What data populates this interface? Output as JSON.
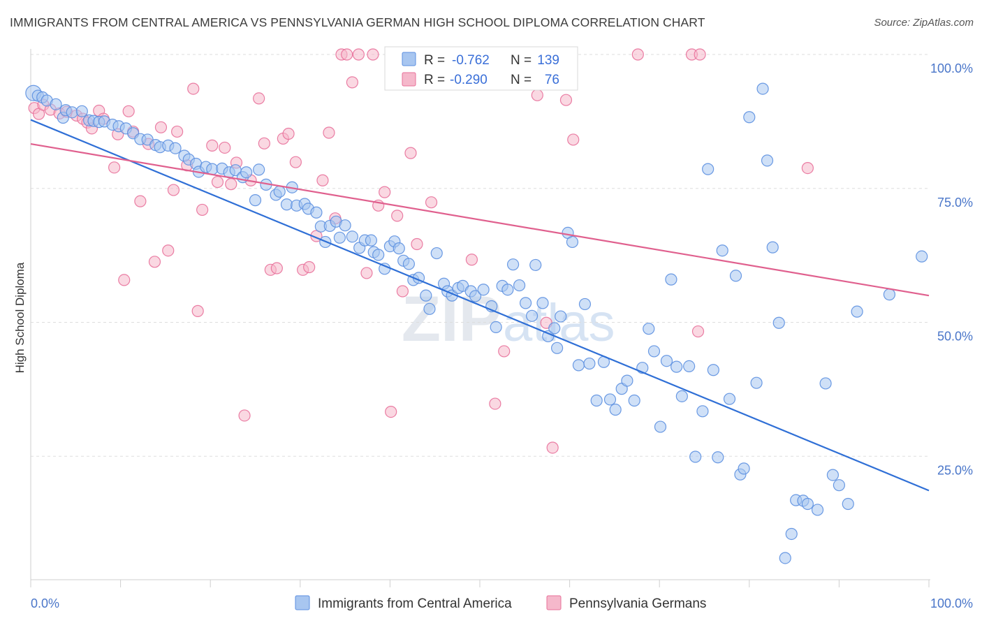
{
  "header": {
    "title": "IMMIGRANTS FROM CENTRAL AMERICA VS PENNSYLVANIA GERMAN HIGH SCHOOL DIPLOMA CORRELATION CHART",
    "source": "Source: ZipAtlas.com"
  },
  "watermark": {
    "zip": "ZIP",
    "atlas": "atlas"
  },
  "legend_box": {
    "rows": [
      {
        "r_label": "R =",
        "r_value": "-0.762",
        "n_label": "N =",
        "n_value": "139",
        "color": "#a8c6f0"
      },
      {
        "r_label": "R =",
        "r_value": "-0.290",
        "n_label": "N =",
        "n_value": "76",
        "color": "#f5b8cb"
      }
    ]
  },
  "bottom_legend": {
    "items": [
      {
        "label": "Immigrants from Central America",
        "color": "#a8c6f0"
      },
      {
        "label": "Pennsylvania Germans",
        "color": "#f5b8cb"
      }
    ]
  },
  "chart_data": {
    "type": "scatter",
    "title": "IMMIGRANTS FROM CENTRAL AMERICA VS PENNSYLVANIA GERMAN HIGH SCHOOL DIPLOMA CORRELATION CHART",
    "ylabel": "High School Diploma",
    "xlabel": "",
    "xlim": [
      0,
      100
    ],
    "ylim": [
      0,
      100
    ],
    "x_tick_labels": [
      "0.0%",
      "100.0%"
    ],
    "y_tick_labels": [
      "100.0%",
      "75.0%",
      "50.0%",
      "25.0%"
    ],
    "y_ticks": [
      100,
      75,
      50,
      25
    ],
    "grid": "horizontal dashed",
    "legend_position": "bottom",
    "series": [
      {
        "name": "Immigrants from Central America",
        "color": "#5b8fe0",
        "fill": "#a8c6f0",
        "R": -0.762,
        "N": 139,
        "trend": {
          "x": [
            0,
            100
          ],
          "y": [
            87.8,
            18.6
          ]
        },
        "points": [
          [
            0.3,
            92.8
          ],
          [
            0.8,
            92.3
          ],
          [
            1.3,
            92.0
          ],
          [
            1.8,
            91.4
          ],
          [
            2.8,
            90.7
          ],
          [
            3.6,
            88.2
          ],
          [
            3.9,
            89.6
          ],
          [
            4.6,
            89.2
          ],
          [
            5.7,
            89.4
          ],
          [
            6.5,
            87.7
          ],
          [
            7.0,
            87.6
          ],
          [
            7.6,
            87.4
          ],
          [
            8.2,
            87.5
          ],
          [
            9.1,
            86.9
          ],
          [
            9.8,
            86.6
          ],
          [
            10.6,
            86.2
          ],
          [
            11.4,
            85.3
          ],
          [
            12.2,
            84.2
          ],
          [
            13.0,
            84.1
          ],
          [
            13.9,
            83.1
          ],
          [
            14.4,
            82.7
          ],
          [
            15.3,
            83.0
          ],
          [
            16.1,
            82.5
          ],
          [
            17.1,
            81.1
          ],
          [
            17.6,
            80.4
          ],
          [
            18.4,
            79.6
          ],
          [
            18.7,
            78.1
          ],
          [
            19.5,
            79.0
          ],
          [
            20.2,
            78.6
          ],
          [
            21.3,
            78.7
          ],
          [
            22.1,
            78.0
          ],
          [
            22.8,
            78.4
          ],
          [
            23.6,
            77.1
          ],
          [
            24.0,
            78.0
          ],
          [
            25.0,
            72.8
          ],
          [
            25.4,
            78.5
          ],
          [
            26.2,
            75.7
          ],
          [
            27.3,
            73.8
          ],
          [
            27.7,
            74.4
          ],
          [
            28.5,
            72.0
          ],
          [
            29.1,
            75.2
          ],
          [
            29.6,
            71.8
          ],
          [
            30.5,
            72.1
          ],
          [
            30.9,
            71.2
          ],
          [
            31.8,
            70.5
          ],
          [
            32.3,
            67.9
          ],
          [
            32.8,
            65.0
          ],
          [
            33.3,
            68.0
          ],
          [
            34.0,
            68.8
          ],
          [
            34.4,
            65.8
          ],
          [
            35.0,
            68.1
          ],
          [
            35.8,
            66.0
          ],
          [
            36.6,
            63.9
          ],
          [
            37.2,
            65.3
          ],
          [
            37.9,
            65.3
          ],
          [
            38.2,
            63.1
          ],
          [
            38.7,
            62.6
          ],
          [
            39.4,
            60.0
          ],
          [
            40.0,
            64.2
          ],
          [
            40.5,
            65.1
          ],
          [
            41.0,
            63.8
          ],
          [
            41.5,
            61.5
          ],
          [
            42.1,
            60.9
          ],
          [
            42.6,
            57.9
          ],
          [
            43.2,
            58.3
          ],
          [
            44.0,
            55.0
          ],
          [
            44.4,
            52.5
          ],
          [
            45.2,
            62.9
          ],
          [
            46.0,
            57.2
          ],
          [
            46.4,
            55.8
          ],
          [
            46.9,
            55.0
          ],
          [
            47.6,
            56.4
          ],
          [
            48.1,
            56.8
          ],
          [
            49.0,
            55.8
          ],
          [
            49.5,
            54.9
          ],
          [
            50.4,
            56.1
          ],
          [
            51.3,
            53.0
          ],
          [
            51.8,
            49.1
          ],
          [
            52.5,
            56.8
          ],
          [
            53.1,
            56.1
          ],
          [
            53.7,
            60.8
          ],
          [
            54.4,
            56.9
          ],
          [
            55.1,
            53.6
          ],
          [
            55.8,
            51.2
          ],
          [
            56.2,
            60.7
          ],
          [
            57.0,
            53.6
          ],
          [
            57.6,
            47.4
          ],
          [
            58.3,
            48.9
          ],
          [
            58.6,
            45.2
          ],
          [
            59.0,
            51.1
          ],
          [
            59.8,
            66.7
          ],
          [
            60.3,
            65.0
          ],
          [
            61.0,
            42.0
          ],
          [
            61.7,
            53.4
          ],
          [
            62.2,
            42.3
          ],
          [
            63.0,
            35.4
          ],
          [
            63.8,
            42.6
          ],
          [
            64.5,
            35.6
          ],
          [
            65.1,
            33.7
          ],
          [
            65.8,
            37.6
          ],
          [
            66.4,
            39.1
          ],
          [
            67.2,
            35.4
          ],
          [
            68.1,
            41.5
          ],
          [
            68.8,
            48.8
          ],
          [
            69.4,
            44.6
          ],
          [
            70.1,
            30.5
          ],
          [
            70.8,
            42.8
          ],
          [
            71.3,
            58.0
          ],
          [
            71.9,
            41.7
          ],
          [
            72.5,
            36.2
          ],
          [
            73.3,
            41.8
          ],
          [
            74.0,
            24.9
          ],
          [
            74.8,
            33.4
          ],
          [
            75.4,
            78.6
          ],
          [
            76.0,
            41.1
          ],
          [
            76.5,
            24.8
          ],
          [
            77.0,
            63.4
          ],
          [
            77.8,
            35.7
          ],
          [
            78.5,
            58.7
          ],
          [
            79.0,
            21.6
          ],
          [
            79.4,
            22.7
          ],
          [
            80.0,
            88.3
          ],
          [
            80.8,
            38.7
          ],
          [
            81.5,
            93.6
          ],
          [
            82.0,
            80.2
          ],
          [
            82.6,
            64.0
          ],
          [
            83.3,
            49.9
          ],
          [
            84.0,
            6.0
          ],
          [
            84.7,
            10.5
          ],
          [
            85.2,
            16.8
          ],
          [
            86.0,
            16.7
          ],
          [
            86.5,
            16.1
          ],
          [
            87.6,
            15.0
          ],
          [
            88.5,
            38.6
          ],
          [
            89.3,
            21.5
          ],
          [
            90.0,
            19.6
          ],
          [
            91.0,
            16.1
          ],
          [
            92.0,
            52.0
          ],
          [
            95.6,
            55.2
          ],
          [
            99.2,
            62.3
          ]
        ]
      },
      {
        "name": "Pennsylvania Germans",
        "color": "#e8709a",
        "fill": "#f5b8cb",
        "R": -0.29,
        "N": 76,
        "trend": {
          "x": [
            0,
            100
          ],
          "y": [
            83.3,
            55.0
          ]
        },
        "points": [
          [
            0.4,
            90.0
          ],
          [
            0.9,
            88.9
          ],
          [
            1.4,
            90.6
          ],
          [
            2.2,
            89.7
          ],
          [
            3.2,
            89.0
          ],
          [
            4.0,
            89.3
          ],
          [
            5.1,
            88.6
          ],
          [
            5.8,
            88.0
          ],
          [
            6.3,
            87.3
          ],
          [
            6.8,
            86.2
          ],
          [
            7.6,
            89.5
          ],
          [
            8.1,
            88.0
          ],
          [
            9.3,
            78.9
          ],
          [
            9.7,
            85.1
          ],
          [
            10.4,
            57.9
          ],
          [
            10.9,
            89.4
          ],
          [
            11.4,
            85.6
          ],
          [
            12.2,
            72.6
          ],
          [
            13.1,
            83.3
          ],
          [
            13.8,
            61.3
          ],
          [
            14.5,
            86.4
          ],
          [
            15.3,
            63.4
          ],
          [
            15.9,
            74.7
          ],
          [
            16.3,
            85.6
          ],
          [
            17.4,
            79.3
          ],
          [
            18.1,
            93.6
          ],
          [
            18.6,
            52.1
          ],
          [
            19.1,
            71.0
          ],
          [
            20.2,
            83.0
          ],
          [
            20.8,
            76.2
          ],
          [
            21.6,
            82.6
          ],
          [
            22.3,
            75.8
          ],
          [
            22.9,
            79.8
          ],
          [
            23.8,
            32.6
          ],
          [
            24.5,
            76.5
          ],
          [
            25.4,
            91.8
          ],
          [
            26.0,
            83.4
          ],
          [
            26.7,
            59.8
          ],
          [
            27.4,
            60.1
          ],
          [
            28.1,
            84.3
          ],
          [
            28.7,
            85.2
          ],
          [
            29.5,
            79.9
          ],
          [
            30.3,
            59.8
          ],
          [
            31.0,
            60.3
          ],
          [
            31.8,
            66.1
          ],
          [
            32.5,
            76.5
          ],
          [
            33.2,
            85.4
          ],
          [
            33.9,
            69.4
          ],
          [
            34.6,
            100.0
          ],
          [
            35.2,
            100.0
          ],
          [
            35.8,
            94.8
          ],
          [
            36.5,
            100.0
          ],
          [
            37.4,
            59.2
          ],
          [
            38.1,
            100.0
          ],
          [
            38.7,
            71.8
          ],
          [
            39.4,
            74.3
          ],
          [
            40.1,
            33.3
          ],
          [
            40.8,
            69.9
          ],
          [
            41.4,
            55.8
          ],
          [
            42.3,
            81.6
          ],
          [
            43.0,
            64.6
          ],
          [
            44.6,
            72.4
          ],
          [
            47.3,
            97.2
          ],
          [
            49.1,
            61.7
          ],
          [
            51.7,
            34.8
          ],
          [
            52.7,
            44.6
          ],
          [
            56.4,
            92.4
          ],
          [
            57.4,
            49.9
          ],
          [
            58.1,
            26.6
          ],
          [
            59.6,
            91.5
          ],
          [
            60.4,
            84.1
          ],
          [
            67.6,
            100.0
          ],
          [
            74.3,
            48.3
          ],
          [
            86.5,
            78.8
          ],
          [
            73.6,
            100.0
          ],
          [
            74.5,
            100.0
          ]
        ]
      }
    ]
  }
}
